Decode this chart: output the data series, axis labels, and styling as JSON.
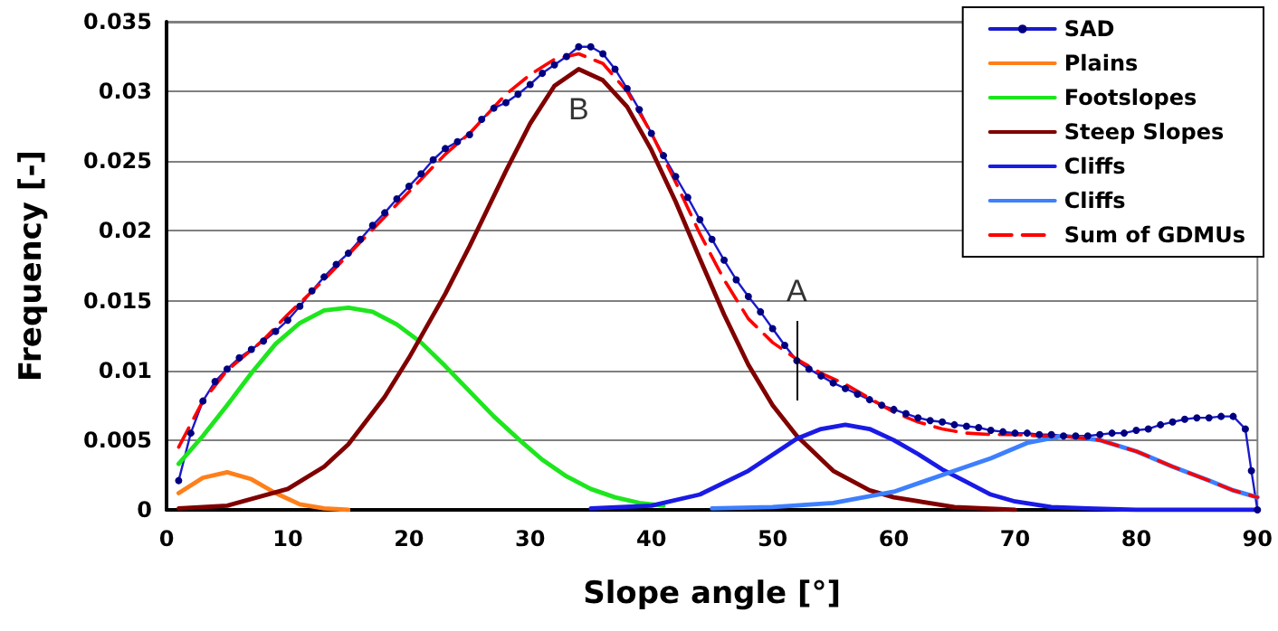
{
  "chart_data": {
    "type": "line",
    "xlabel": "Slope angle [°]",
    "ylabel": "Frequency [-]",
    "xlim": [
      0,
      90
    ],
    "xticks": [
      0,
      10,
      20,
      30,
      40,
      50,
      60,
      70,
      80,
      90
    ],
    "ylim": [
      0,
      0.035
    ],
    "yticks": [
      0,
      0.005,
      0.01,
      0.015,
      0.02,
      0.025,
      0.03,
      0.035
    ],
    "grid": "y",
    "legend": "top right",
    "annotations": [
      {
        "text": "A",
        "x": 52,
        "y": 0.0107
      },
      {
        "text": "B",
        "x": 34,
        "y": 0.0332
      }
    ],
    "series": [
      {
        "name": "SAD",
        "color": "#1a1acc",
        "marker": "circle",
        "line_style": "solid",
        "x": [
          1,
          2,
          3,
          4,
          5,
          6,
          7,
          8,
          9,
          10,
          11,
          12,
          13,
          14,
          15,
          16,
          17,
          18,
          19,
          20,
          21,
          22,
          23,
          24,
          25,
          26,
          27,
          28,
          29,
          30,
          31,
          32,
          33,
          34,
          35,
          36,
          37,
          38,
          39,
          40,
          41,
          42,
          43,
          44,
          45,
          46,
          47,
          48,
          49,
          50,
          51,
          52,
          53,
          54,
          55,
          56,
          57,
          58,
          59,
          60,
          61,
          62,
          63,
          64,
          65,
          66,
          67,
          68,
          69,
          70,
          71,
          72,
          73,
          74,
          75,
          76,
          77,
          78,
          79,
          80,
          81,
          82,
          83,
          84,
          85,
          86,
          87,
          88,
          89,
          89.5,
          90
        ],
        "values": [
          0.0021,
          0.0055,
          0.0078,
          0.0092,
          0.0101,
          0.0109,
          0.0115,
          0.0121,
          0.0128,
          0.0136,
          0.0146,
          0.0157,
          0.0167,
          0.0176,
          0.0184,
          0.0194,
          0.0204,
          0.0213,
          0.0223,
          0.0232,
          0.0241,
          0.0251,
          0.0259,
          0.0264,
          0.0269,
          0.028,
          0.0288,
          0.0292,
          0.0298,
          0.0305,
          0.0313,
          0.0319,
          0.0325,
          0.0332,
          0.0332,
          0.0327,
          0.0316,
          0.0302,
          0.0287,
          0.027,
          0.0254,
          0.0239,
          0.0224,
          0.0208,
          0.0194,
          0.0179,
          0.0165,
          0.0153,
          0.0142,
          0.013,
          0.0118,
          0.0107,
          0.0101,
          0.0096,
          0.0091,
          0.0087,
          0.0083,
          0.0079,
          0.0075,
          0.0072,
          0.0069,
          0.0066,
          0.0064,
          0.0063,
          0.0061,
          0.006,
          0.0059,
          0.0057,
          0.0056,
          0.0055,
          0.0055,
          0.0054,
          0.0054,
          0.0053,
          0.0053,
          0.0053,
          0.0054,
          0.0055,
          0.0055,
          0.0057,
          0.0058,
          0.0061,
          0.0063,
          0.0065,
          0.0066,
          0.0066,
          0.0067,
          0.0067,
          0.0058,
          0.0028,
          0
        ]
      },
      {
        "name": "Plains",
        "color": "#ff7f1a",
        "marker": "none",
        "line_style": "solid",
        "x": [
          1,
          3,
          5,
          7,
          9,
          11,
          13,
          15
        ],
        "values": [
          0.0012,
          0.0023,
          0.0027,
          0.0022,
          0.0012,
          0.0004,
          0.0001,
          0
        ]
      },
      {
        "name": "Footslopes",
        "color": "#1de61d",
        "marker": "none",
        "line_style": "solid",
        "x": [
          1,
          3,
          5,
          7,
          9,
          11,
          13,
          15,
          17,
          19,
          21,
          23,
          25,
          27,
          29,
          31,
          33,
          35,
          37,
          39,
          41
        ],
        "values": [
          0.0033,
          0.0053,
          0.0075,
          0.0098,
          0.0119,
          0.0134,
          0.0143,
          0.0145,
          0.0142,
          0.0133,
          0.012,
          0.0103,
          0.0085,
          0.0067,
          0.0051,
          0.0036,
          0.0024,
          0.0015,
          0.0009,
          0.0005,
          0.0003
        ]
      },
      {
        "name": "Steep Slopes",
        "color": "#800000",
        "marker": "none",
        "line_style": "solid",
        "x": [
          1,
          5,
          10,
          13,
          15,
          18,
          20,
          23,
          25,
          28,
          30,
          32,
          34,
          36,
          38,
          40,
          42,
          44,
          46,
          48,
          50,
          52,
          55,
          58,
          60,
          65,
          70
        ],
        "values": [
          0.0001,
          0.0003,
          0.0015,
          0.0031,
          0.0047,
          0.0081,
          0.0109,
          0.0155,
          0.0189,
          0.0243,
          0.0277,
          0.0304,
          0.0316,
          0.0308,
          0.0289,
          0.0258,
          0.0221,
          0.018,
          0.014,
          0.0104,
          0.0075,
          0.0053,
          0.0028,
          0.0014,
          0.0009,
          0.0002,
          0
        ]
      },
      {
        "name": "Cliffs",
        "color": "#1a1ae6",
        "marker": "none",
        "line_style": "solid",
        "x": [
          35,
          40,
          44,
          48,
          52,
          54,
          56,
          58,
          60,
          62,
          64,
          66,
          68,
          70,
          73,
          76,
          80,
          90
        ],
        "values": [
          0.0001,
          0.0003,
          0.0011,
          0.0028,
          0.0051,
          0.0058,
          0.0061,
          0.0058,
          0.005,
          0.004,
          0.0029,
          0.002,
          0.0011,
          0.0006,
          0.0002,
          0.0001,
          0,
          0
        ]
      },
      {
        "name": "Cliffs",
        "color": "#3d7fff",
        "marker": "none",
        "line_style": "solid",
        "x": [
          45,
          50,
          55,
          60,
          65,
          68,
          71,
          74,
          77,
          80,
          83,
          86,
          88,
          90
        ],
        "values": [
          0.0001,
          0.0002,
          0.0005,
          0.0013,
          0.0028,
          0.0037,
          0.0048,
          0.0053,
          0.005,
          0.0042,
          0.0031,
          0.0021,
          0.0014,
          0.0009
        ]
      },
      {
        "name": "Sum of GDMUs",
        "color": "#ff0000",
        "marker": "none",
        "line_style": "dashed",
        "x": [
          1,
          3,
          5,
          8,
          10,
          13,
          15,
          18,
          20,
          23,
          25,
          28,
          30,
          32,
          34,
          36,
          38,
          40,
          42,
          44,
          46,
          48,
          50,
          52,
          54,
          56,
          58,
          60,
          62,
          64,
          66,
          68,
          70,
          72,
          74,
          77,
          80,
          83,
          86,
          88,
          90
        ],
        "values": [
          0.0045,
          0.0078,
          0.01,
          0.0122,
          0.014,
          0.0165,
          0.0183,
          0.021,
          0.0228,
          0.0255,
          0.027,
          0.0298,
          0.0312,
          0.0323,
          0.0327,
          0.032,
          0.03,
          0.027,
          0.0235,
          0.0198,
          0.0165,
          0.0137,
          0.012,
          0.0108,
          0.0098,
          0.009,
          0.008,
          0.007,
          0.0063,
          0.0058,
          0.0055,
          0.0054,
          0.0054,
          0.0053,
          0.0053,
          0.005,
          0.0042,
          0.0031,
          0.0021,
          0.0014,
          0.0009
        ]
      }
    ]
  }
}
